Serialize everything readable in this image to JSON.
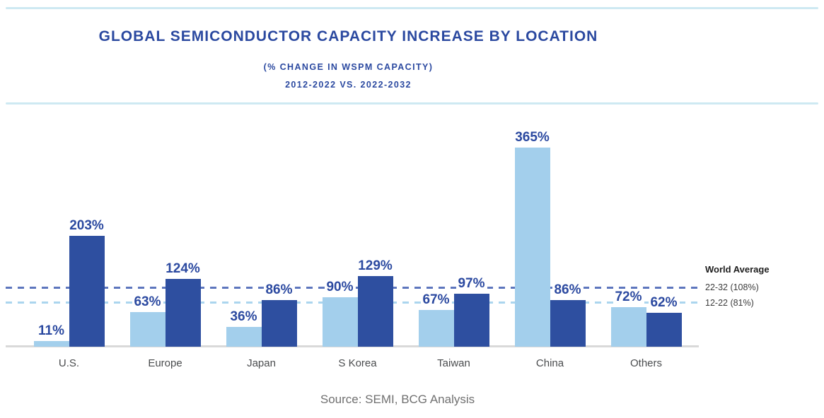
{
  "header": {
    "title": "GLOBAL SEMICONDUCTOR CAPACITY INCREASE BY LOCATION",
    "subtitle1": "(% CHANGE IN WSPM CAPACITY)",
    "subtitle2": "2012-2022 VS. 2022-2032"
  },
  "legend": {
    "title": "World Average",
    "items": [
      {
        "label": "22-32 (108%)",
        "value": 108,
        "color": "#5d76bd"
      },
      {
        "label": "12-22 (81%)",
        "value": 81,
        "color": "#abd5ee"
      }
    ]
  },
  "footer": {
    "source": "Source: SEMI, BCG Analysis"
  },
  "colors": {
    "series_light_blue": "#a3cfec",
    "series_dark_blue": "#2e4fa0",
    "title_blue": "#2b49a0",
    "ref_dashed_dark": "#5d76bd",
    "ref_dashed_light": "#abd5ee",
    "divider_light_blue": "#cee9f2",
    "axis_baseline_gray": "#d9d9d9",
    "category_label_gray": "#4a4c4e",
    "source_gray": "#707070"
  },
  "chart_data": {
    "type": "bar",
    "title": "GLOBAL SEMICONDUCTOR CAPACITY INCREASE BY LOCATION",
    "subtitle": "(% CHANGE IN WSPM CAPACITY) 2012-2022 VS. 2022-2032",
    "categories": [
      "U.S.",
      "Europe",
      "Japan",
      "S Korea",
      "Taiwan",
      "China",
      "Others"
    ],
    "series": [
      {
        "name": "12-22",
        "color": "#a3cfec",
        "values": [
          11,
          63,
          36,
          90,
          67,
          365,
          72
        ]
      },
      {
        "name": "22-32",
        "color": "#2e4fa0",
        "values": [
          203,
          124,
          86,
          129,
          97,
          86,
          62
        ]
      }
    ],
    "value_label_suffix": "%",
    "reference_lines": [
      {
        "name": "World Average 22-32",
        "label": "22-32 (108%)",
        "value": 108,
        "style": "dashed",
        "color": "#5d76bd"
      },
      {
        "name": "World Average 12-22",
        "label": "12-22 (81%)",
        "value": 81,
        "style": "dashed",
        "color": "#abd5ee"
      }
    ],
    "xlabel": "",
    "ylabel": "% change in WSPM capacity",
    "ylim": [
      0,
      445
    ],
    "grid": "off",
    "legend_position": "right",
    "source": "Source: SEMI, BCG Analysis"
  }
}
